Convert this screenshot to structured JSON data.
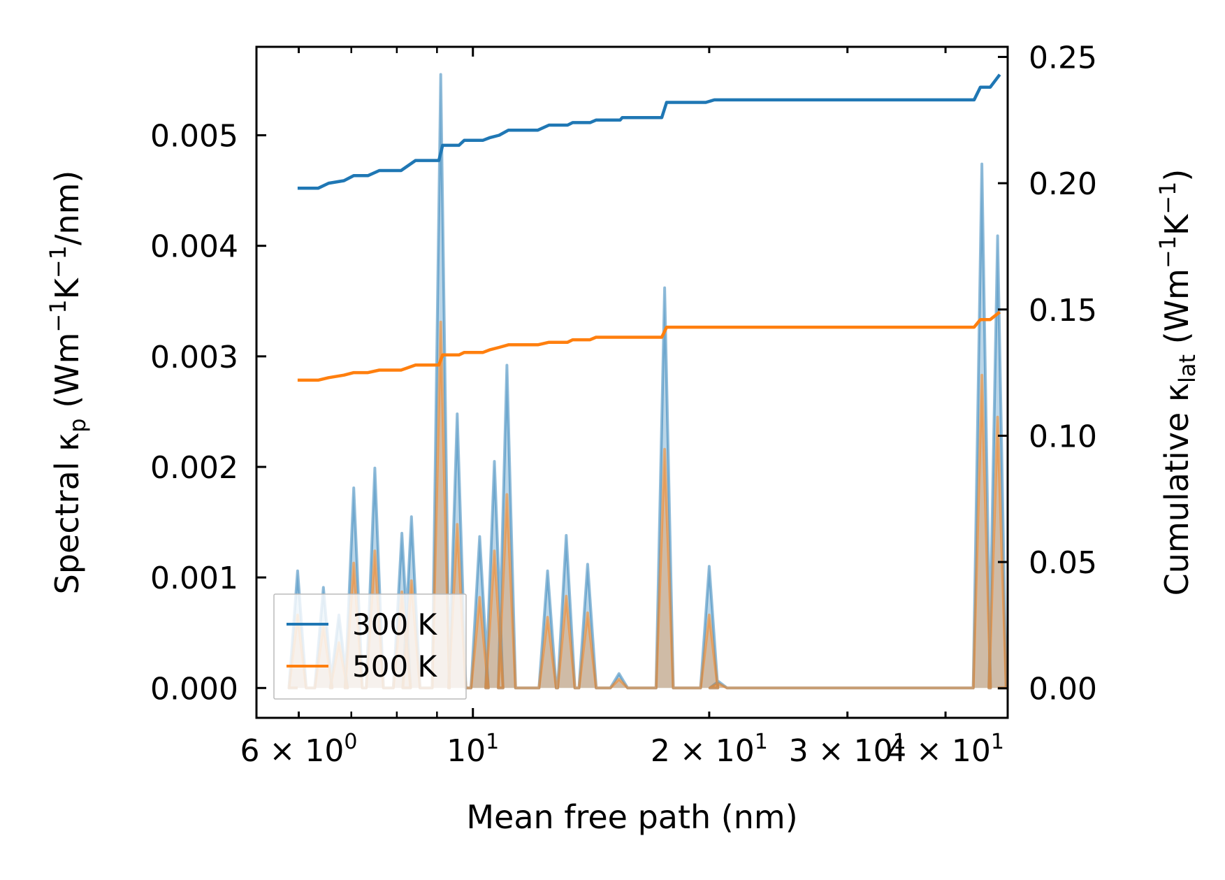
{
  "chart_data": {
    "type": "line",
    "title": "",
    "xlabel": "Mean free path (nm)",
    "ylabel_left": "Spectral κp (Wm⁻¹K⁻¹/nm)",
    "ylabel_left_parts": {
      "a": "Spectral κ",
      "sub": "p",
      "b": " (Wm",
      "sup1": "−1",
      "c": "K",
      "sup2": "−1",
      "d": "/nm)"
    },
    "ylabel_right": "Cumulative κlat (Wm⁻¹K⁻¹)",
    "ylabel_right_parts": {
      "a": "Cumulative κ",
      "sub": "lat",
      "b": " (Wm",
      "sup1": "−1",
      "c": "K",
      "sup2": "−1",
      "d": ")"
    },
    "xscale": "log",
    "xlim": [
      5.3,
      48.0
    ],
    "ylim_left": [
      -0.00027,
      0.0058
    ],
    "ylim_right": [
      -0.0117,
      0.254
    ],
    "xticks": [
      {
        "value": 6,
        "base": "6 × 10",
        "exp": "0"
      },
      {
        "value": 10,
        "base": "10",
        "exp": "1"
      },
      {
        "value": 20,
        "base": "2 × 10",
        "exp": "1"
      },
      {
        "value": 30,
        "base": "3 × 10",
        "exp": "1"
      },
      {
        "value": 40,
        "base": "4 × 10",
        "exp": "1"
      }
    ],
    "yticks_left": [
      {
        "value": 0.0,
        "label": "0.000"
      },
      {
        "value": 0.001,
        "label": "0.001"
      },
      {
        "value": 0.002,
        "label": "0.002"
      },
      {
        "value": 0.003,
        "label": "0.003"
      },
      {
        "value": 0.004,
        "label": "0.004"
      },
      {
        "value": 0.005,
        "label": "0.005"
      }
    ],
    "yticks_right": [
      {
        "value": 0.0,
        "label": "0.00"
      },
      {
        "value": 0.05,
        "label": "0.05"
      },
      {
        "value": 0.1,
        "label": "0.10"
      },
      {
        "value": 0.15,
        "label": "0.15"
      },
      {
        "value": 0.2,
        "label": "0.20"
      },
      {
        "value": 0.25,
        "label": "0.25"
      }
    ],
    "legend_position": "lower-left",
    "series": [
      {
        "name": "300 K",
        "color": "#1f77b4",
        "spectral_peaks": [
          [
            5.98,
            0.00106
          ],
          [
            6.45,
            0.00091
          ],
          [
            6.75,
            0.00066
          ],
          [
            7.05,
            0.00181
          ],
          [
            7.5,
            0.00199
          ],
          [
            8.12,
            0.0014
          ],
          [
            8.35,
            0.00155
          ],
          [
            9.1,
            0.00555
          ],
          [
            9.55,
            0.00248
          ],
          [
            10.2,
            0.00137
          ],
          [
            10.65,
            0.00205
          ],
          [
            11.05,
            0.00292
          ],
          [
            12.45,
            0.00106
          ],
          [
            13.15,
            0.00138
          ],
          [
            14.0,
            0.00112
          ],
          [
            15.35,
            0.00013
          ],
          [
            17.55,
            0.00362
          ],
          [
            20.0,
            0.0011
          ],
          [
            20.55,
            6e-05
          ],
          [
            44.5,
            0.00474
          ],
          [
            46.6,
            0.00409
          ]
        ],
        "cumulative": [
          [
            5.98,
            0.198
          ],
          [
            6.35,
            0.198
          ],
          [
            6.55,
            0.2
          ],
          [
            6.85,
            0.201
          ],
          [
            7.05,
            0.203
          ],
          [
            7.35,
            0.203
          ],
          [
            7.6,
            0.205
          ],
          [
            8.0,
            0.205
          ],
          [
            8.1,
            0.205
          ],
          [
            8.45,
            0.209
          ],
          [
            9.05,
            0.209
          ],
          [
            9.15,
            0.215
          ],
          [
            9.6,
            0.215
          ],
          [
            9.75,
            0.217
          ],
          [
            10.3,
            0.217
          ],
          [
            10.5,
            0.218
          ],
          [
            10.8,
            0.219
          ],
          [
            11.1,
            0.221
          ],
          [
            11.4,
            0.221
          ],
          [
            12.1,
            0.221
          ],
          [
            12.5,
            0.223
          ],
          [
            13.2,
            0.223
          ],
          [
            13.4,
            0.224
          ],
          [
            14.1,
            0.224
          ],
          [
            14.35,
            0.225
          ],
          [
            15.4,
            0.225
          ],
          [
            15.5,
            0.226
          ],
          [
            17.4,
            0.226
          ],
          [
            17.65,
            0.232
          ],
          [
            19.8,
            0.232
          ],
          [
            20.3,
            0.233
          ],
          [
            43.5,
            0.233
          ],
          [
            44.3,
            0.238
          ],
          [
            45.6,
            0.238
          ],
          [
            46.9,
            0.243
          ]
        ]
      },
      {
        "name": "500 K",
        "color": "#ff7f0e",
        "spectral_peaks": [
          [
            5.98,
            0.00066
          ],
          [
            6.45,
            0.00057
          ],
          [
            6.75,
            0.00041
          ],
          [
            7.05,
            0.00113
          ],
          [
            7.5,
            0.00124
          ],
          [
            8.12,
            0.00087
          ],
          [
            8.35,
            0.00097
          ],
          [
            9.1,
            0.00331
          ],
          [
            9.55,
            0.00148
          ],
          [
            10.2,
            0.00082
          ],
          [
            10.65,
            0.00124
          ],
          [
            11.05,
            0.00175
          ],
          [
            12.45,
            0.00064
          ],
          [
            13.15,
            0.00083
          ],
          [
            14.0,
            0.00068
          ],
          [
            15.35,
            8e-05
          ],
          [
            17.55,
            0.00216
          ],
          [
            20.0,
            0.00066
          ],
          [
            20.55,
            4e-05
          ],
          [
            44.5,
            0.00283
          ],
          [
            46.6,
            0.00245
          ]
        ],
        "cumulative": [
          [
            5.98,
            0.122
          ],
          [
            6.35,
            0.122
          ],
          [
            6.55,
            0.123
          ],
          [
            6.85,
            0.124
          ],
          [
            7.05,
            0.125
          ],
          [
            7.35,
            0.125
          ],
          [
            7.6,
            0.126
          ],
          [
            8.1,
            0.126
          ],
          [
            8.45,
            0.128
          ],
          [
            9.05,
            0.128
          ],
          [
            9.15,
            0.132
          ],
          [
            9.6,
            0.132
          ],
          [
            9.75,
            0.133
          ],
          [
            10.3,
            0.133
          ],
          [
            10.5,
            0.134
          ],
          [
            10.8,
            0.135
          ],
          [
            11.1,
            0.136
          ],
          [
            11.4,
            0.136
          ],
          [
            12.1,
            0.136
          ],
          [
            12.5,
            0.137
          ],
          [
            13.2,
            0.137
          ],
          [
            13.4,
            0.138
          ],
          [
            14.1,
            0.138
          ],
          [
            14.35,
            0.139
          ],
          [
            15.4,
            0.139
          ],
          [
            15.5,
            0.139
          ],
          [
            17.4,
            0.139
          ],
          [
            17.65,
            0.143
          ],
          [
            19.8,
            0.143
          ],
          [
            20.3,
            0.143
          ],
          [
            43.5,
            0.143
          ],
          [
            44.3,
            0.146
          ],
          [
            45.6,
            0.146
          ],
          [
            46.9,
            0.149
          ]
        ]
      }
    ]
  }
}
